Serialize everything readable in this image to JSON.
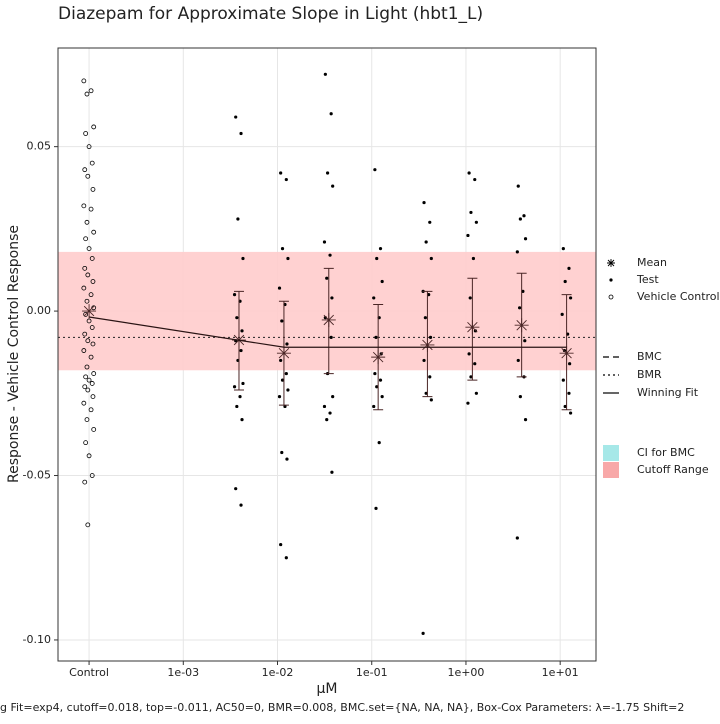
{
  "chart_data": {
    "type": "scatter",
    "title": "Diazepam for Approximate Slope in Light (hbt1_L)",
    "x_label": "µM",
    "y_label": "Response - Vehicle Control Response",
    "caption": "g Fit=exp4, cutoff=0.018, top=-0.011, AC50=0, BMR=0.008, BMC.set={NA, NA, NA}, Box-Cox Parameters: λ=-1.75 Shift=2",
    "x_scale": "log",
    "xlim": [
      4.68e-05,
      24
    ],
    "ylim": [
      -0.1064,
      0.08
    ],
    "xticks": [
      {
        "value": 0.0001,
        "label": "Control"
      },
      {
        "value": 0.001,
        "label": "1e-03"
      },
      {
        "value": 0.01,
        "label": "1e-02"
      },
      {
        "value": 0.1,
        "label": "1e-01"
      },
      {
        "value": 1,
        "label": "1e+00"
      },
      {
        "value": 10,
        "label": "1e+01"
      }
    ],
    "yticks": [
      {
        "value": 0.05,
        "label": "0.05"
      },
      {
        "value": 0,
        "label": "0.00"
      },
      {
        "value": -0.05,
        "label": "-0.05"
      },
      {
        "value": -0.1,
        "label": "-0.10"
      }
    ],
    "grid": true,
    "cutoff_band": {
      "label": "Cutoff Range",
      "range": [
        -0.018,
        0.018
      ],
      "color": "#ffcccc",
      "legend_color": "#f8a8a8"
    },
    "ci_band": {
      "label": "CI for BMC",
      "legend_color": "#a6e8e8"
    },
    "bmr_line": {
      "label": "BMR",
      "value": -0.008,
      "dash": "2,3"
    },
    "bmc_line": {
      "label": "BMC",
      "dash": "6,4"
    },
    "series": [
      {
        "name": "Vehicle Control",
        "marker": "circle",
        "color": "#000000",
        "x": [
          8.8e-05,
          0.000105,
          9.5e-05,
          0.000112,
          9.2e-05,
          0.0001,
          0.000108,
          9e-05,
          9.7e-05,
          0.00011,
          8.8e-05,
          0.000105,
          9.5e-05,
          0.000112,
          9.2e-05,
          0.0001,
          0.000108,
          9e-05,
          9.7e-05,
          0.00011,
          8.8e-05,
          0.000105,
          9.5e-05,
          0.000112,
          9.2e-05,
          0.0001,
          0.000108,
          9e-05,
          9.7e-05,
          0.00011,
          8.8e-05,
          0.000105,
          9.5e-05,
          0.000112,
          9.2e-05,
          0.0001,
          0.000108,
          9e-05,
          9.7e-05,
          0.00011,
          8.8e-05,
          0.000105,
          9.5e-05,
          0.000112,
          9.2e-05,
          0.0001,
          0.000108,
          9e-05,
          9.7e-05
        ],
        "values": [
          0.07,
          0.067,
          0.066,
          0.056,
          0.054,
          0.05,
          0.045,
          0.043,
          0.041,
          0.037,
          0.032,
          0.031,
          0.027,
          0.024,
          0.022,
          0.019,
          0.016,
          0.013,
          0.011,
          0.009,
          0.007,
          0.005,
          0.003,
          0.001,
          -0.001,
          -0.003,
          -0.005,
          -0.007,
          -0.009,
          -0.01,
          -0.012,
          -0.014,
          -0.017,
          -0.019,
          -0.02,
          -0.021,
          -0.022,
          -0.023,
          -0.024,
          -0.026,
          -0.028,
          -0.03,
          -0.033,
          -0.036,
          -0.04,
          -0.044,
          -0.05,
          -0.052,
          -0.065
        ]
      },
      {
        "name": "Test",
        "marker": "dot",
        "color": "#000000",
        "x": [
          0.0036,
          0.0041,
          0.0038,
          0.0043,
          0.0035,
          0.004,
          0.0037,
          0.0042,
          0.0036,
          0.0041,
          0.0038,
          0.0043,
          0.0035,
          0.004,
          0.0037,
          0.0042,
          0.0036,
          0.0041,
          0.0108,
          0.0124,
          0.0113,
          0.0129,
          0.0105,
          0.012,
          0.0111,
          0.0126,
          0.0108,
          0.0124,
          0.0113,
          0.0129,
          0.0105,
          0.012,
          0.0111,
          0.0126,
          0.0108,
          0.0124,
          0.0322,
          0.0371,
          0.034,
          0.0385,
          0.0315,
          0.0361,
          0.0333,
          0.0378,
          0.0322,
          0.0371,
          0.034,
          0.0385,
          0.0315,
          0.0361,
          0.0333,
          0.0378,
          0.108,
          0.124,
          0.113,
          0.129,
          0.105,
          0.12,
          0.111,
          0.126,
          0.108,
          0.124,
          0.113,
          0.129,
          0.105,
          0.12,
          0.111,
          0.359,
          0.413,
          0.378,
          0.429,
          0.351,
          0.402,
          0.371,
          0.421,
          0.359,
          0.413,
          0.378,
          0.429,
          0.351,
          1.08,
          1.24,
          1.13,
          1.29,
          1.05,
          1.2,
          1.11,
          1.26,
          1.08,
          1.24,
          1.13,
          1.29,
          1.05,
          3.59,
          4.13,
          3.78,
          4.29,
          3.51,
          4.02,
          3.71,
          4.21,
          3.59,
          4.13,
          3.78,
          4.29,
          3.51,
          10.8,
          12.4,
          11.3,
          12.9,
          10.5,
          12.0,
          11.1,
          12.6,
          10.8,
          12.4,
          11.3,
          12.9
        ],
        "values": [
          0.059,
          0.054,
          0.028,
          0.016,
          0.005,
          0.003,
          -0.002,
          -0.006,
          -0.009,
          -0.012,
          -0.015,
          -0.022,
          -0.023,
          -0.026,
          -0.029,
          -0.033,
          -0.054,
          -0.059,
          0.042,
          0.04,
          0.019,
          0.016,
          0.007,
          0.002,
          -0.003,
          -0.01,
          -0.015,
          -0.019,
          -0.021,
          -0.024,
          -0.026,
          -0.029,
          -0.043,
          -0.045,
          -0.071,
          -0.075,
          0.072,
          0.06,
          0.042,
          0.038,
          0.021,
          0.017,
          0.01,
          0.004,
          -0.002,
          -0.008,
          -0.019,
          -0.026,
          -0.029,
          -0.031,
          -0.033,
          -0.049,
          0.043,
          0.019,
          0.016,
          0.009,
          0.004,
          -0.002,
          -0.008,
          -0.013,
          -0.019,
          -0.021,
          -0.023,
          -0.026,
          -0.029,
          -0.04,
          -0.06,
          0.033,
          0.027,
          0.021,
          0.016,
          0.006,
          0.005,
          -0.002,
          -0.008,
          -0.015,
          -0.02,
          -0.025,
          -0.027,
          -0.098,
          0.042,
          0.04,
          0.03,
          0.027,
          0.023,
          0.016,
          0.004,
          -0.006,
          -0.013,
          -0.016,
          -0.02,
          -0.025,
          -0.028,
          0.038,
          0.029,
          0.028,
          0.022,
          0.018,
          0.006,
          0.001,
          -0.009,
          -0.015,
          -0.02,
          -0.026,
          -0.033,
          -0.069,
          0.019,
          0.013,
          0.009,
          0.004,
          -0.001,
          -0.007,
          -0.012,
          -0.016,
          -0.021,
          -0.025,
          -0.029,
          -0.031
        ]
      },
      {
        "name": "Mean",
        "marker": "asterisk",
        "color": "#4a2626",
        "x": [
          0.0001,
          0.0039,
          0.0117,
          0.035,
          0.117,
          0.39,
          1.17,
          3.9,
          11.7
        ],
        "values": [
          0,
          -0.0088,
          -0.0128,
          -0.0027,
          -0.014,
          -0.0103,
          -0.0049,
          -0.0043,
          -0.0128
        ],
        "upper": [
          null,
          0.006,
          0.003,
          0.013,
          0.002,
          0.006,
          0.01,
          0.0115,
          0.005
        ],
        "lower": [
          null,
          -0.024,
          -0.0286,
          -0.019,
          -0.03,
          -0.026,
          -0.021,
          -0.02,
          -0.03
        ]
      },
      {
        "name": "Winning Fit",
        "marker": "line",
        "color": "#2a1414",
        "x": [
          0.0001,
          0.0118,
          11.7
        ],
        "values": [
          -0.0018,
          -0.011,
          -0.011
        ]
      }
    ]
  }
}
